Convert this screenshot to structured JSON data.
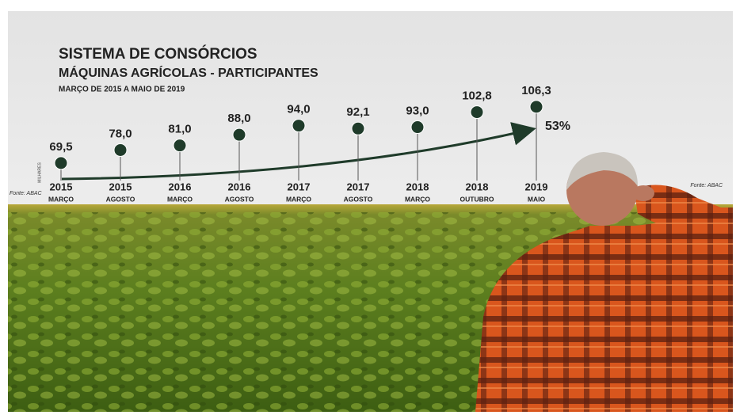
{
  "chart_data": {
    "type": "line",
    "title": "SISTEMA DE CONSÓRCIOS",
    "subtitle": "MÁQUINAS AGRÍCOLAS - PARTICIPANTES",
    "period": "MARÇO DE 2015 A MAIO DE 2019",
    "unit_label": "MILHARES",
    "source_left": "Fonte: ABAC",
    "source_right": "Fonte: ABAC",
    "annotation": "53%",
    "categories": [
      [
        "2015",
        "MARÇO"
      ],
      [
        "2015",
        "AGOSTO"
      ],
      [
        "2016",
        "MARÇO"
      ],
      [
        "2016",
        "AGOSTO"
      ],
      [
        "2017",
        "MARÇO"
      ],
      [
        "2017",
        "AGOSTO"
      ],
      [
        "2018",
        "MARÇO"
      ],
      [
        "2018",
        "OUTUBRO"
      ],
      [
        "2019",
        "MAIO"
      ]
    ],
    "values": [
      69.5,
      78.0,
      81.0,
      88.0,
      94.0,
      92.1,
      93.0,
      102.8,
      106.3
    ],
    "value_labels": [
      "69,5",
      "78,0",
      "81,0",
      "88,0",
      "94,0",
      "92,1",
      "93,0",
      "102,8",
      "106,3"
    ],
    "color": "#1f3b2a",
    "ylim": [
      57,
      114
    ]
  }
}
